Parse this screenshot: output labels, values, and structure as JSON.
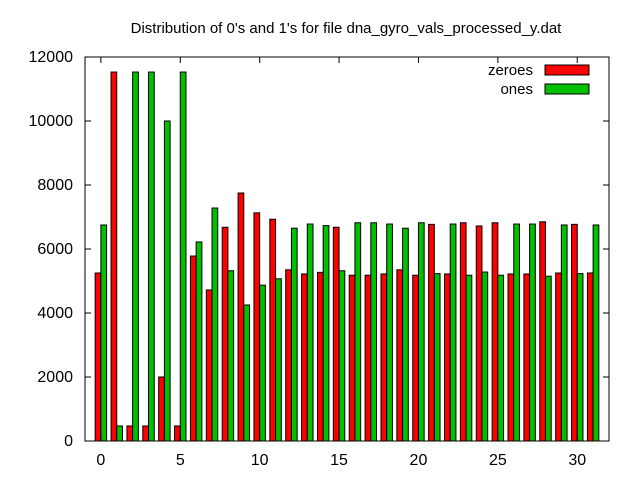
{
  "chart_data": {
    "type": "bar",
    "title": "Distribution of 0's and 1's for file dna_gyro_vals_processed_y.dat",
    "xlabel": "",
    "ylabel": "",
    "xlim": [
      -1,
      32
    ],
    "ylim": [
      0,
      12000
    ],
    "x_ticks": [
      0,
      5,
      10,
      15,
      20,
      25,
      30
    ],
    "y_ticks": [
      0,
      2000,
      4000,
      6000,
      8000,
      10000,
      12000
    ],
    "grid": false,
    "legend_position": "top-right",
    "categories": [
      0,
      1,
      2,
      3,
      4,
      5,
      6,
      7,
      8,
      9,
      10,
      11,
      12,
      13,
      14,
      15,
      16,
      17,
      18,
      19,
      20,
      21,
      22,
      23,
      24,
      25,
      26,
      27,
      28,
      29,
      30,
      31
    ],
    "series": [
      {
        "name": "zeroes",
        "color": "#ff0000",
        "values": [
          5250,
          11530,
          470,
          470,
          2000,
          470,
          5780,
          4720,
          6680,
          7750,
          7130,
          6930,
          5350,
          5220,
          5270,
          6680,
          5180,
          5180,
          5220,
          5350,
          5180,
          6770,
          5220,
          6820,
          6720,
          6820,
          5220,
          5220,
          6850,
          5250,
          6770,
          5250
        ]
      },
      {
        "name": "ones",
        "color": "#00c000",
        "values": [
          6750,
          470,
          11530,
          11530,
          10000,
          11530,
          6220,
          7280,
          5320,
          4250,
          4870,
          5070,
          6650,
          6780,
          6730,
          5320,
          6820,
          6820,
          6780,
          6650,
          6820,
          5230,
          6780,
          5180,
          5280,
          5180,
          6780,
          6780,
          5150,
          6750,
          5230,
          6750
        ]
      }
    ]
  }
}
